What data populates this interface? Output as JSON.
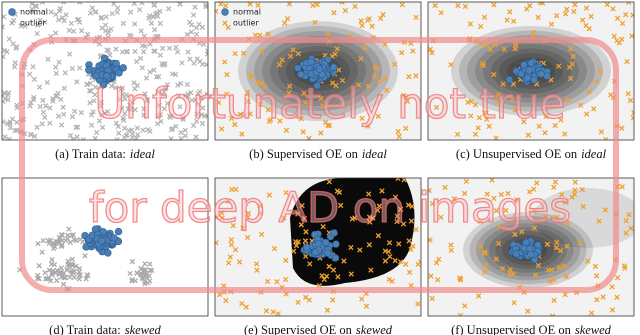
{
  "panels": [
    {
      "caption": {
        "prefix": "(a) Train data:",
        "emphasis": "ideal"
      },
      "legend": [
        "normal",
        "outlier"
      ]
    },
    {
      "caption": {
        "prefix": "(b) Supervised OE on",
        "emphasis": "ideal"
      },
      "legend": [
        "normal",
        "outlier"
      ]
    },
    {
      "caption": {
        "prefix": "(c) Unsupervised OE on",
        "emphasis": "ideal"
      }
    },
    {
      "caption": {
        "prefix": "(d) Train data:",
        "emphasis": "skewed"
      }
    },
    {
      "caption": {
        "prefix": "(e) Supervised OE on",
        "emphasis": "skewed"
      }
    },
    {
      "caption": {
        "prefix": "(f) Unsupervised OE on",
        "emphasis": "skewed"
      }
    }
  ],
  "overlay": [
    "Unfortunately not true",
    "for deep AD on images"
  ]
}
